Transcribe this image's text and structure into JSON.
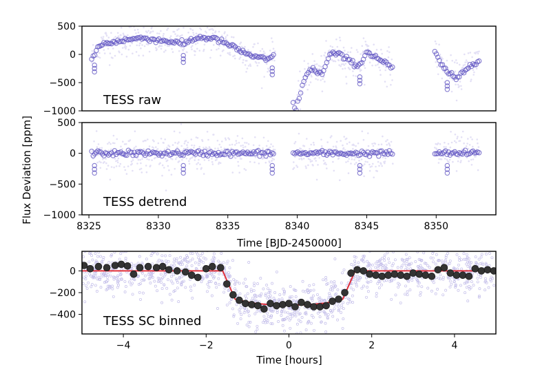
{
  "figure": {
    "shared_ylabel": "Flux Deviation [ppm]"
  },
  "chart_data": [
    {
      "type": "scatter",
      "panel_label": "TESS raw",
      "xlim": [
        8324.5,
        8354.3
      ],
      "ylim": [
        -1000,
        500
      ],
      "yticks": [
        500,
        0,
        -500,
        -1000
      ],
      "xticks": [],
      "xlabel": "",
      "ylabel": "Flux Deviation [ppm]",
      "colors": {
        "points": "#6a5acd",
        "binned": "#5b4fc0"
      },
      "segments": [
        {
          "x_start": 8325.2,
          "x_end": 8338.4
        },
        {
          "x_start": 8339.7,
          "x_end": 8346.9
        },
        {
          "x_start": 8349.9,
          "x_end": 8353.1
        }
      ],
      "binned_trend": {
        "x": [
          8325.2,
          8325.6,
          8326.0,
          8327.0,
          8328.0,
          8329.0,
          8330.0,
          8331.0,
          8331.8,
          8332.4,
          8333.0,
          8334.0,
          8335.0,
          8336.0,
          8337.0,
          8337.9,
          8338.4,
          8339.9,
          8340.4,
          8341.0,
          8341.8,
          8342.4,
          8343.0,
          8344.0,
          8344.5,
          8345.0,
          8346.0,
          8346.9,
          8349.9,
          8350.4,
          8351.0,
          8351.4,
          8352.0,
          8352.6,
          8353.1
        ],
        "y": [
          -100,
          120,
          180,
          230,
          270,
          290,
          250,
          230,
          180,
          260,
          300,
          280,
          180,
          50,
          -50,
          -100,
          0,
          -1000,
          -500,
          -250,
          -350,
          20,
          0,
          -150,
          -200,
          50,
          -100,
          -250,
          30,
          -200,
          -350,
          -450,
          -300,
          -150,
          -100
        ]
      }
    },
    {
      "type": "scatter",
      "panel_label": "TESS detrend",
      "xlim": [
        8324.5,
        8354.3
      ],
      "ylim": [
        -1000,
        500
      ],
      "yticks": [
        500,
        0,
        -500,
        -1000
      ],
      "xticks": [
        8325,
        8330,
        8335,
        8340,
        8345,
        8350
      ],
      "xlabel": "Time [BJD-2450000]",
      "ylabel": "Flux Deviation [ppm]",
      "colors": {
        "points": "#6a5acd",
        "binned": "#5b4fc0"
      },
      "segments": [
        {
          "x_start": 8325.2,
          "x_end": 8338.4
        },
        {
          "x_start": 8339.7,
          "x_end": 8346.9
        },
        {
          "x_start": 8349.9,
          "x_end": 8353.1
        }
      ],
      "binned_trend": {
        "x": [
          8325.2,
          8353.1
        ],
        "y": [
          0,
          0
        ]
      }
    },
    {
      "type": "scatter",
      "panel_label": "TESS SC binned",
      "xlim": [
        -5.0,
        5.0
      ],
      "ylim": [
        -580,
        180
      ],
      "yticks": [
        0,
        -200,
        -400
      ],
      "xticks": [
        -4,
        -2,
        0,
        2,
        4
      ],
      "xlabel": "Time [hours]",
      "ylabel": "",
      "colors": {
        "points": "#7b6fd0",
        "binned": "#333333",
        "model": "#e0303a"
      },
      "model": {
        "x": [
          -5.0,
          -1.6,
          -1.3,
          -0.9,
          -0.5,
          0.0,
          0.5,
          0.9,
          1.3,
          1.6,
          5.0
        ],
        "y": [
          0,
          0,
          -260,
          -295,
          -310,
          -315,
          -310,
          -295,
          -260,
          0,
          0
        ]
      },
      "binned": {
        "x": [
          -4.95,
          -4.8,
          -4.6,
          -4.4,
          -4.2,
          -4.05,
          -3.9,
          -3.75,
          -3.6,
          -3.4,
          -3.2,
          -3.05,
          -2.9,
          -2.7,
          -2.5,
          -2.35,
          -2.2,
          -2.0,
          -1.85,
          -1.65,
          -1.5,
          -1.35,
          -1.2,
          -1.05,
          -0.9,
          -0.75,
          -0.6,
          -0.45,
          -0.3,
          -0.15,
          0.0,
          0.15,
          0.3,
          0.45,
          0.6,
          0.75,
          0.9,
          1.05,
          1.2,
          1.35,
          1.5,
          1.65,
          1.8,
          1.95,
          2.1,
          2.25,
          2.4,
          2.55,
          2.7,
          2.85,
          3.0,
          3.15,
          3.3,
          3.45,
          3.6,
          3.75,
          3.9,
          4.05,
          4.2,
          4.35,
          4.5,
          4.65,
          4.8,
          4.95
        ],
        "y": [
          50,
          20,
          40,
          30,
          50,
          60,
          45,
          -30,
          30,
          40,
          30,
          40,
          10,
          0,
          -10,
          -40,
          -60,
          20,
          40,
          30,
          -120,
          -220,
          -270,
          -300,
          -310,
          -320,
          -350,
          -300,
          -320,
          -310,
          -300,
          -330,
          -290,
          -310,
          -330,
          -330,
          -320,
          -280,
          -260,
          -200,
          -20,
          10,
          0,
          -30,
          -40,
          -50,
          -40,
          -30,
          -40,
          -50,
          -20,
          -30,
          -40,
          -50,
          10,
          30,
          -20,
          -40,
          -40,
          -50,
          20,
          0,
          10,
          0
        ]
      }
    }
  ]
}
